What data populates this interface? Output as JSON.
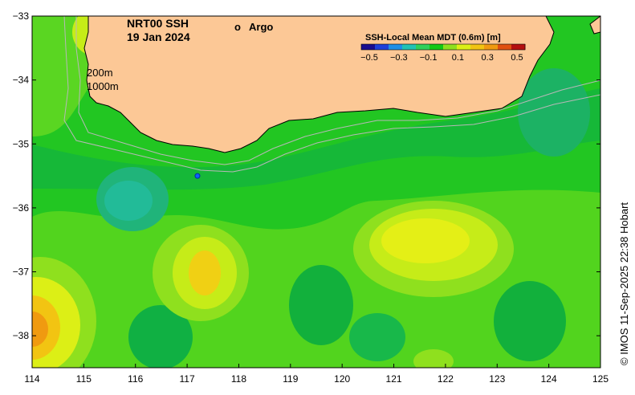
{
  "map": {
    "title": "NRT00 SSH",
    "date": "19 Jan 2024",
    "legend_marker_symbol": "o",
    "legend_marker_label": "Argo",
    "legend_marker_color": "#ff00ff",
    "contour_labels": [
      "200m",
      "1000m"
    ],
    "credit": "© IMOS 11-Sep-2025 22:38 Hobart",
    "land_color": "#fcc896",
    "bathy_line_color": "#b8b8b8"
  },
  "colorbar": {
    "title": "SSH-Local Mean MDT (0.6m) [m]",
    "ticks": [
      "−0.5",
      "−0.3",
      "−0.1",
      "0.1",
      "0.3",
      "0.5"
    ],
    "colors": [
      "#1a0d8f",
      "#1f3fd9",
      "#1f8fe6",
      "#22c2b4",
      "#2fd05a",
      "#14c814",
      "#8ee01e",
      "#dcef16",
      "#f2c412",
      "#f09a10",
      "#e05010",
      "#b41010"
    ]
  },
  "axes": {
    "x_ticks": [
      "114",
      "115",
      "116",
      "117",
      "118",
      "119",
      "120",
      "121",
      "122",
      "123",
      "124",
      "125"
    ],
    "y_ticks": [
      "−33",
      "−34",
      "−35",
      "−36",
      "−37",
      "−38"
    ],
    "lon_range": [
      114,
      125
    ],
    "lat_range": [
      -38.5,
      -33
    ]
  },
  "argo_floats": [
    {
      "lon": 117.2,
      "lat": -35.5
    }
  ]
}
